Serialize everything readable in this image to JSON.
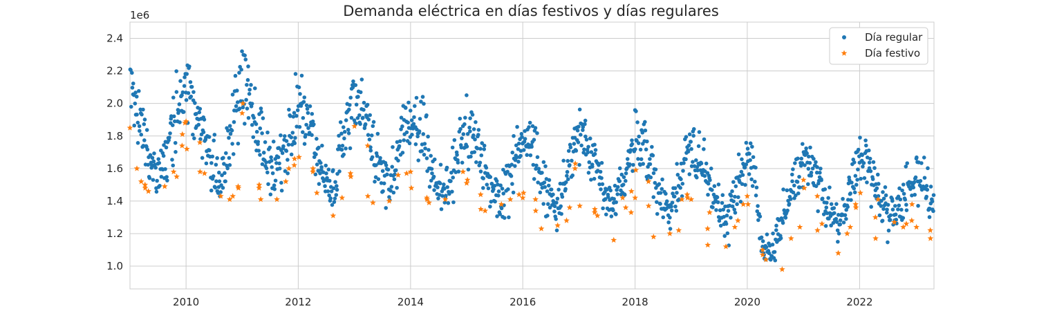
{
  "chart_data": {
    "type": "scatter",
    "title": "Demanda eléctrica en días festivos y días regulares",
    "xlabel": "",
    "ylabel": "",
    "y_offset_label": "1e6",
    "xlim": [
      "2009-01-01",
      "2023-04-30"
    ],
    "ylim": [
      0.86,
      2.5
    ],
    "x_ticks": [
      "2010-01-01",
      "2012-01-01",
      "2014-01-01",
      "2016-01-01",
      "2018-01-01",
      "2020-01-01",
      "2022-01-01"
    ],
    "x_tick_labels": [
      "2010",
      "2012",
      "2014",
      "2016",
      "2018",
      "2020",
      "2022"
    ],
    "y_ticks": [
      1.0,
      1.2,
      1.4,
      1.6,
      1.8,
      2.0,
      2.2,
      2.4
    ],
    "y_tick_labels": [
      "1.0",
      "1.2",
      "1.4",
      "1.6",
      "1.8",
      "2.0",
      "2.2",
      "2.4"
    ],
    "grid": true,
    "legend_position": "top-right",
    "series": [
      {
        "name": "Día regular",
        "marker": "circle",
        "color": "#1f77b4",
        "seasonal_envelope": {
          "x": [
            "2009-01-01",
            "2009-06-15",
            "2010-01-15",
            "2010-08-01",
            "2011-01-05",
            "2011-08-01",
            "2012-01-15",
            "2012-08-01",
            "2013-01-10",
            "2013-08-01",
            "2014-01-10",
            "2014-08-01",
            "2015-01-15",
            "2015-08-01",
            "2016-01-15",
            "2016-08-01",
            "2017-01-15",
            "2017-08-01",
            "2018-01-15",
            "2018-08-01",
            "2019-01-15",
            "2019-08-01",
            "2020-01-15",
            "2020-05-01",
            "2021-01-15",
            "2021-08-01",
            "2022-01-15",
            "2022-08-01",
            "2023-01-15",
            "2023-04-30"
          ],
          "y_mid": [
            2.05,
            1.55,
            2.1,
            1.55,
            2.1,
            1.58,
            1.92,
            1.52,
            2.0,
            1.52,
            1.9,
            1.48,
            1.82,
            1.42,
            1.78,
            1.38,
            1.78,
            1.4,
            1.75,
            1.36,
            1.72,
            1.3,
            1.65,
            1.08,
            1.62,
            1.28,
            1.62,
            1.32,
            1.55,
            1.4
          ],
          "spread": [
            0.28,
            0.17,
            0.3,
            0.2,
            0.27,
            0.19,
            0.25,
            0.19,
            0.24,
            0.18,
            0.23,
            0.18,
            0.22,
            0.17,
            0.22,
            0.17,
            0.22,
            0.17,
            0.22,
            0.16,
            0.22,
            0.16,
            0.22,
            0.12,
            0.21,
            0.15,
            0.2,
            0.15,
            0.2,
            0.16
          ]
        },
        "point_count": 1520
      },
      {
        "name": "Día festivo",
        "marker": "star",
        "color": "#ff7f0e",
        "x": [
          "2009-01-01",
          "2009-02-15",
          "2009-03-15",
          "2009-04-09",
          "2009-04-10",
          "2009-05-01",
          "2009-08-15",
          "2009-10-12",
          "2009-11-01",
          "2009-12-06",
          "2009-12-08",
          "2009-12-25",
          "2010-01-01",
          "2010-01-06",
          "2010-04-01",
          "2010-04-02",
          "2010-05-01",
          "2010-08-15",
          "2010-10-12",
          "2010-11-01",
          "2010-12-06",
          "2010-12-08",
          "2011-01-01",
          "2011-01-06",
          "2011-04-21",
          "2011-04-22",
          "2011-05-02",
          "2011-08-15",
          "2011-10-12",
          "2011-11-01",
          "2011-12-06",
          "2011-12-08",
          "2012-01-06",
          "2012-04-05",
          "2012-04-06",
          "2012-05-01",
          "2012-08-15",
          "2012-10-12",
          "2012-12-06",
          "2012-12-08",
          "2013-01-01",
          "2013-03-28",
          "2013-03-29",
          "2013-05-01",
          "2013-08-15",
          "2013-10-12",
          "2013-12-06",
          "2014-01-01",
          "2014-01-06",
          "2014-04-17",
          "2014-04-18",
          "2014-05-01",
          "2014-08-15",
          "2014-12-08",
          "2015-01-01",
          "2015-01-06",
          "2015-04-02",
          "2015-04-03",
          "2015-05-01",
          "2015-08-15",
          "2015-10-12",
          "2015-12-08",
          "2016-01-01",
          "2016-01-06",
          "2016-03-24",
          "2016-03-25",
          "2016-05-01",
          "2016-08-15",
          "2016-10-12",
          "2016-11-01",
          "2016-12-06",
          "2016-12-08",
          "2017-01-06",
          "2017-04-13",
          "2017-04-14",
          "2017-05-01",
          "2017-08-15",
          "2017-10-12",
          "2017-11-01",
          "2017-12-06",
          "2017-12-08",
          "2018-01-01",
          "2018-01-06",
          "2018-03-29",
          "2018-03-30",
          "2018-05-01",
          "2018-08-15",
          "2018-10-12",
          "2018-11-01",
          "2018-12-06",
          "2018-12-08",
          "2019-01-01",
          "2019-04-18",
          "2019-04-19",
          "2019-05-01",
          "2019-08-15",
          "2019-10-12",
          "2019-11-01",
          "2019-12-06",
          "2020-01-01",
          "2020-01-06",
          "2020-04-09",
          "2020-04-10",
          "2020-05-01",
          "2020-08-15",
          "2020-10-12",
          "2020-12-08",
          "2021-01-01",
          "2021-01-06",
          "2021-04-01",
          "2021-04-02",
          "2021-05-01",
          "2021-08-15",
          "2021-10-12",
          "2021-11-01",
          "2021-12-06",
          "2021-12-08",
          "2022-01-06",
          "2022-04-14",
          "2022-04-15",
          "2022-05-01",
          "2022-08-15",
          "2022-10-12",
          "2022-11-01",
          "2022-12-06",
          "2022-12-08",
          "2023-01-06",
          "2023-04-06",
          "2023-04-07"
        ],
        "y": [
          1.85,
          1.6,
          1.52,
          1.5,
          1.48,
          1.46,
          1.49,
          1.58,
          1.55,
          1.74,
          1.81,
          1.88,
          1.89,
          1.72,
          1.76,
          1.58,
          1.57,
          1.43,
          1.41,
          1.43,
          1.49,
          1.48,
          1.94,
          2.0,
          1.48,
          1.5,
          1.41,
          1.41,
          1.52,
          1.6,
          1.62,
          1.66,
          1.67,
          1.58,
          1.6,
          1.45,
          1.31,
          1.42,
          1.57,
          1.55,
          1.86,
          1.74,
          1.43,
          1.39,
          1.4,
          1.56,
          1.57,
          1.58,
          1.48,
          1.42,
          1.41,
          1.39,
          1.41,
          1.58,
          1.51,
          1.53,
          1.44,
          1.35,
          1.34,
          1.38,
          1.41,
          1.44,
          1.42,
          1.45,
          1.41,
          1.34,
          1.23,
          1.25,
          1.28,
          1.36,
          1.6,
          1.63,
          1.37,
          1.33,
          1.35,
          1.31,
          1.16,
          1.42,
          1.36,
          1.33,
          1.46,
          1.42,
          1.59,
          1.52,
          1.37,
          1.18,
          1.2,
          1.22,
          1.41,
          1.44,
          1.42,
          1.41,
          1.23,
          1.13,
          1.33,
          1.12,
          1.24,
          1.28,
          1.38,
          1.43,
          1.38,
          1.1,
          1.07,
          1.04,
          0.98,
          1.17,
          1.24,
          1.53,
          1.48,
          1.43,
          1.22,
          1.26,
          1.08,
          1.2,
          1.24,
          1.38,
          1.36,
          1.45,
          1.3,
          1.17,
          1.41,
          1.27,
          1.24,
          1.26,
          1.28,
          1.38,
          1.24,
          1.22,
          1.17
        ]
      }
    ]
  }
}
